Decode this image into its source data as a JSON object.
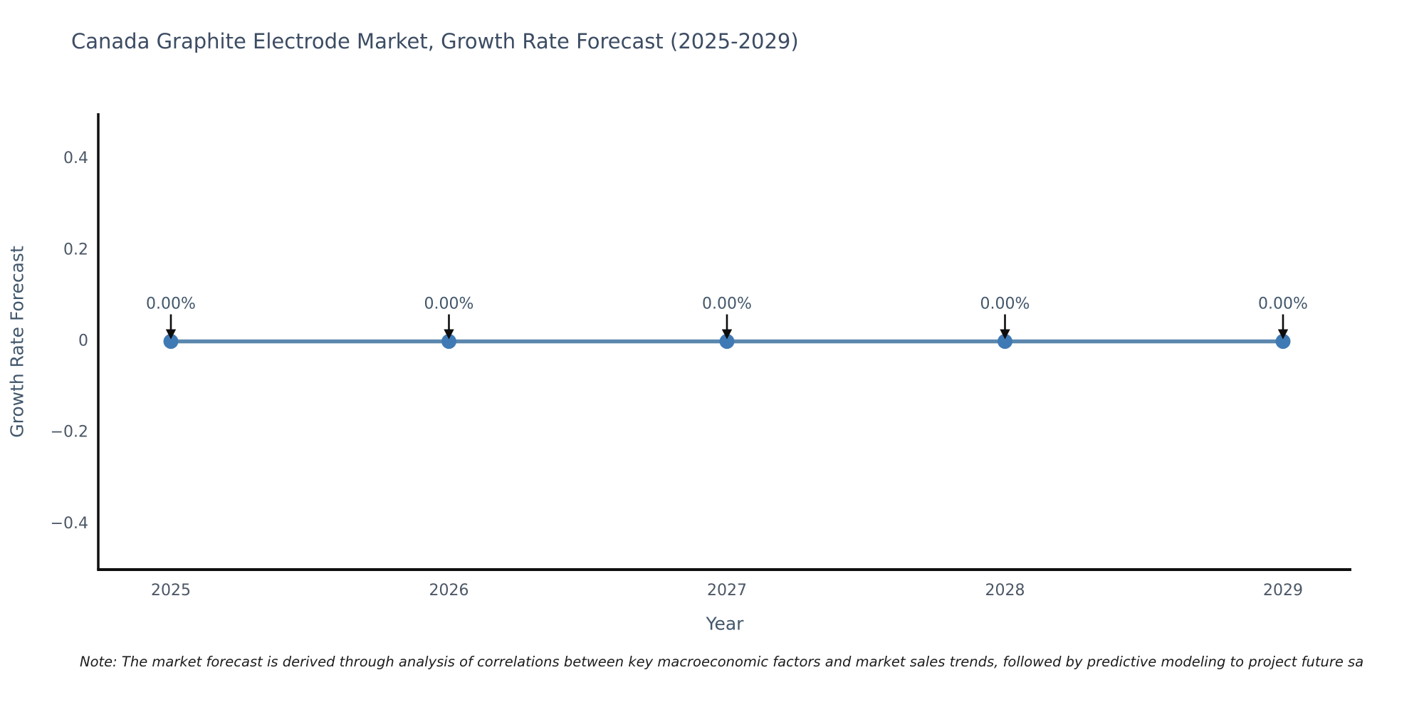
{
  "title": "Canada Graphite Electrode Market, Growth Rate Forecast (2025-2029)",
  "note": "Note: The market forecast is derived through analysis of correlations between key macroeconomic factors and market sales trends, followed by predictive modeling to project future sa",
  "chart_data": {
    "type": "line",
    "title": "Canada Graphite Electrode Market, Growth Rate Forecast (2025-2029)",
    "xlabel": "Year",
    "ylabel": "Growth Rate Forecast",
    "categories": [
      "2025",
      "2026",
      "2027",
      "2028",
      "2029"
    ],
    "series": [
      {
        "name": "Growth Rate Forecast",
        "values": [
          0,
          0,
          0,
          0,
          0
        ]
      }
    ],
    "point_labels": [
      "0.00%",
      "0.00%",
      "0.00%",
      "0.00%",
      "0.00%"
    ],
    "ylim": [
      -0.5,
      0.5
    ],
    "yticks": [
      {
        "value": 0.4,
        "label": "0.4"
      },
      {
        "value": 0.2,
        "label": "0.2"
      },
      {
        "value": 0,
        "label": "0"
      },
      {
        "value": -0.2,
        "label": "−0.2"
      },
      {
        "value": -0.4,
        "label": "−0.4"
      }
    ],
    "grid": false,
    "legend": "none",
    "colors": {
      "line": "#5a87ad",
      "marker": "#3f7ab5",
      "annotation_arrow": "#0d0d0d",
      "spine": "#0f0f0f",
      "tick_text": "#4c5766",
      "label_text": "#42576b"
    }
  }
}
